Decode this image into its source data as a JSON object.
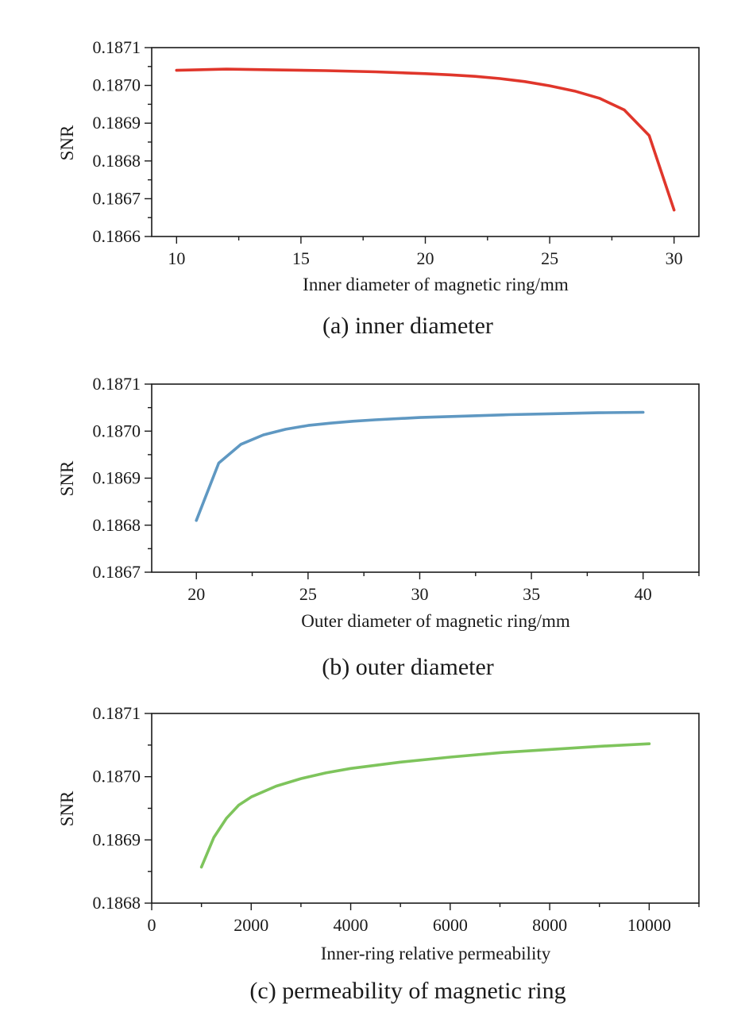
{
  "chart_data": [
    {
      "type": "line",
      "xlabel": "Inner diameter of magnetic ring/mm",
      "ylabel": "SNR",
      "caption": "(a) inner diameter",
      "xlim": [
        9,
        31
      ],
      "ylim": [
        0.1866,
        0.1871
      ],
      "x_ticks": [
        10,
        15,
        20,
        25,
        30
      ],
      "x_tick_labels": [
        "10",
        "15",
        "20",
        "25",
        "30"
      ],
      "y_ticks": [
        0.1866,
        0.1867,
        0.1868,
        0.1869,
        0.187,
        0.1871
      ],
      "y_tick_labels": [
        "0.1866",
        "0.1867",
        "0.1868",
        "0.1869",
        "0.1870",
        "0.1871"
      ],
      "series": [
        {
          "color": "#e0362b",
          "x": [
            10,
            12,
            14,
            16,
            18,
            20,
            21,
            22,
            23,
            24,
            25,
            26,
            27,
            28,
            29,
            30
          ],
          "y": [
            0.18704,
            0.187043,
            0.187041,
            0.187039,
            0.187036,
            0.187031,
            0.187028,
            0.187024,
            0.187018,
            0.18701,
            0.186999,
            0.186985,
            0.186966,
            0.186935,
            0.186867,
            0.18667
          ]
        }
      ]
    },
    {
      "type": "line",
      "xlabel": "Outer diameter of magnetic ring/mm",
      "ylabel": "SNR",
      "caption": "(b) outer diameter",
      "xlim": [
        18,
        42.5
      ],
      "ylim": [
        0.1867,
        0.1871
      ],
      "x_ticks": [
        20,
        25,
        30,
        35,
        40
      ],
      "x_tick_labels": [
        "20",
        "25",
        "30",
        "35",
        "40"
      ],
      "y_ticks": [
        0.1867,
        0.1868,
        0.1869,
        0.187,
        0.1871
      ],
      "y_tick_labels": [
        "0.1867",
        "0.1868",
        "0.1869",
        "0.1870",
        "0.1871"
      ],
      "series": [
        {
          "color": "#5f98c2",
          "x": [
            20,
            21,
            22,
            23,
            24,
            25,
            26,
            27,
            28,
            30,
            32,
            34,
            36,
            38,
            40
          ],
          "y": [
            0.18681,
            0.186932,
            0.186972,
            0.186992,
            0.187004,
            0.187012,
            0.187017,
            0.187021,
            0.187024,
            0.187029,
            0.187032,
            0.187035,
            0.187037,
            0.187039,
            0.18704
          ]
        }
      ]
    },
    {
      "type": "line",
      "xlabel": "Inner-ring relative permeability",
      "ylabel": "SNR",
      "caption": "(c) permeability of magnetic ring",
      "xlim": [
        0,
        11000
      ],
      "ylim": [
        0.1868,
        0.1871
      ],
      "x_ticks": [
        0,
        2000,
        4000,
        6000,
        8000,
        10000
      ],
      "x_tick_labels": [
        "0",
        "2000",
        "4000",
        "6000",
        "8000",
        "10000"
      ],
      "y_ticks": [
        0.1868,
        0.1869,
        0.187,
        0.1871
      ],
      "y_tick_labels": [
        "0.1868",
        "0.1869",
        "0.1870",
        "0.1871"
      ],
      "series": [
        {
          "color": "#7ec45c",
          "x": [
            1000,
            1250,
            1500,
            1750,
            2000,
            2500,
            3000,
            3500,
            4000,
            5000,
            6000,
            7000,
            8000,
            9000,
            10000
          ],
          "y": [
            0.186857,
            0.186904,
            0.186934,
            0.186955,
            0.186968,
            0.186985,
            0.186997,
            0.187006,
            0.187013,
            0.187023,
            0.187031,
            0.187038,
            0.187043,
            0.187048,
            0.187052
          ]
        }
      ]
    }
  ]
}
